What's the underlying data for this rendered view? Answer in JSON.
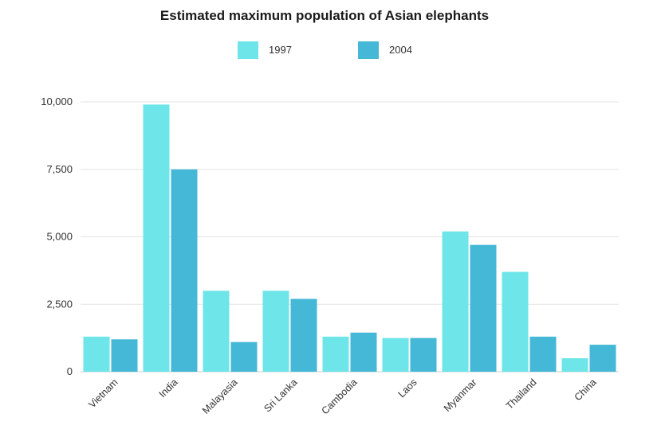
{
  "chart_data": {
    "type": "bar",
    "title": "Estimated maximum population of Asian elephants",
    "xlabel": "",
    "ylabel": "",
    "ylim": [
      0,
      10000
    ],
    "yticks": [
      0,
      2500,
      5000,
      7500,
      10000
    ],
    "ytick_labels": [
      "0",
      "2,500",
      "5,000",
      "7,500",
      "10,000"
    ],
    "grid": true,
    "legend_position": "top-center",
    "categories": [
      "Vietnam",
      "India",
      "Malayasia",
      "Sri Lanka",
      "Cambodia",
      "Laos",
      "Myanmar",
      "Thailand",
      "China"
    ],
    "series": [
      {
        "name": "1997",
        "color": "#6ee5e8",
        "values": [
          1300,
          9900,
          3000,
          3000,
          1300,
          1250,
          5200,
          3700,
          500
        ]
      },
      {
        "name": "2004",
        "color": "#44b8d6",
        "values": [
          1200,
          7500,
          1100,
          2700,
          1450,
          1250,
          4700,
          1300,
          1000
        ]
      }
    ]
  }
}
